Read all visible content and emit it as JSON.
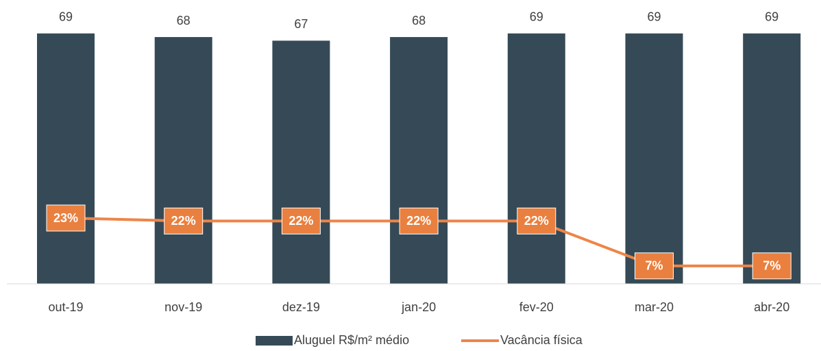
{
  "chart_data": {
    "type": "bar_line",
    "categories": [
      "out-19",
      "nov-19",
      "dez-19",
      "jan-20",
      "fev-20",
      "mar-20",
      "abr-20"
    ],
    "series": [
      {
        "name": "Aluguel R$/m² médio",
        "type": "bar",
        "color": "#354a56",
        "values": [
          69,
          68,
          67,
          68,
          69,
          69,
          69
        ]
      },
      {
        "name": "Vacância física",
        "type": "line",
        "axis": "y2",
        "color": "#ed8548",
        "values": [
          23,
          22,
          22,
          22,
          22,
          7,
          7
        ],
        "value_labels": [
          "23%",
          "22%",
          "22%",
          "22%",
          "22%",
          "7%",
          "7%"
        ]
      }
    ],
    "ylim": [
      0,
      75
    ],
    "y2lim": [
      1,
      92
    ],
    "legend": "bottom"
  }
}
